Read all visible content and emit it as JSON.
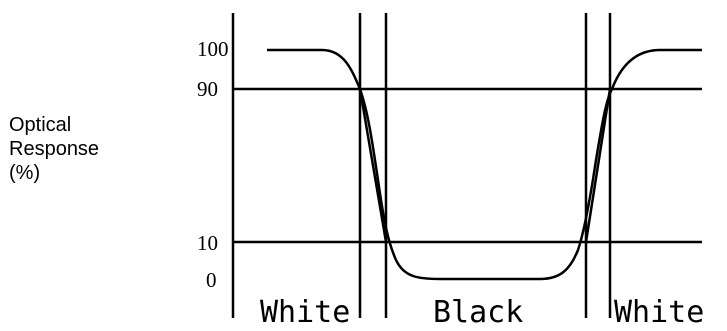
{
  "axis": {
    "label_lines": [
      "Optical",
      "Response",
      "(%)"
    ],
    "ticks": [
      "100",
      "90",
      "10",
      "0"
    ]
  },
  "regions": [
    "White",
    "Black",
    "White"
  ],
  "colors": {
    "line": "#000000",
    "background": "#ffffff"
  }
}
